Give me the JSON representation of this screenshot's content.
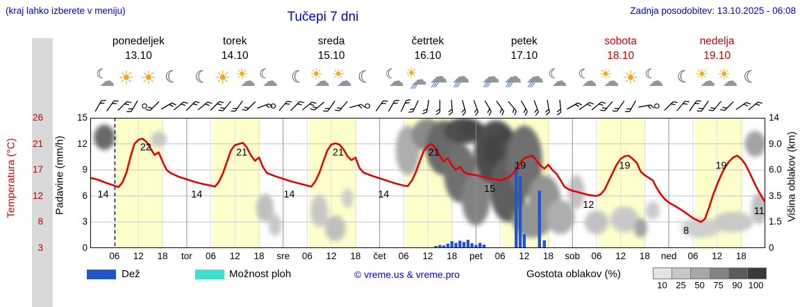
{
  "header": {
    "hint": "(kraj lahko izberete v meniju)",
    "title": "Tučepi 7 dni",
    "updated": "Zadnja posodobitev: 13.10.2025 - 06:08"
  },
  "axes": {
    "temp_label": "Temperatura (°C)",
    "temp_ticks": [
      "26",
      "21",
      "17",
      "12",
      "8",
      "3"
    ],
    "rain_label": "Padavine (mm/h)",
    "rain_ticks": [
      "15",
      "12",
      "9",
      "6",
      "3",
      "0"
    ],
    "cloud_label": "Višina oblakov (km)",
    "cloud_ticks": [
      "14",
      "9.0",
      "6.0",
      "3.5",
      "1.5",
      "0"
    ],
    "hour_labels": [
      "06",
      "12",
      "18"
    ]
  },
  "days": [
    {
      "name": "ponedeljek",
      "date": "13.10",
      "weekend": false,
      "abbr": null,
      "icons": [
        "moon-cloud",
        "sun",
        "sun",
        "moon"
      ]
    },
    {
      "name": "torek",
      "date": "14.10",
      "weekend": false,
      "abbr": "tor",
      "icons": [
        "moon",
        "sun",
        "sun-cloud",
        "moon-cloud"
      ]
    },
    {
      "name": "sreda",
      "date": "15.10",
      "weekend": false,
      "abbr": "sre",
      "icons": [
        "moon",
        "sun-cloud",
        "sun-cloud",
        "moon"
      ]
    },
    {
      "name": "četrtek",
      "date": "16.10",
      "weekend": false,
      "abbr": "čet",
      "icons": [
        "moon-cloud",
        "sun-rain",
        "rain",
        "rain"
      ]
    },
    {
      "name": "petek",
      "date": "17.10",
      "weekend": false,
      "abbr": "pet",
      "icons": [
        "rain",
        "rain",
        "rain",
        "moon-cloud"
      ]
    },
    {
      "name": "sobota",
      "date": "18.10",
      "weekend": true,
      "abbr": "sob",
      "icons": [
        "moon-cloud",
        "sun-cloud",
        "sun",
        "moon-cloud"
      ]
    },
    {
      "name": "nedelja",
      "date": "19.10",
      "weekend": true,
      "abbr": "ned",
      "icons": [
        "moon",
        "sun-cloud",
        "sun-cloud",
        "moon"
      ]
    }
  ],
  "legend": {
    "rain": "Dež",
    "showers": "Možnost ploh",
    "copyright": "© vreme.us & vreme.pro",
    "cloud_density": "Gostota oblakov (%)",
    "density_ticks": [
      "10",
      "25",
      "50",
      "75",
      "90",
      "100"
    ],
    "density_colors": [
      "#e3e3e3",
      "#c7c7c7",
      "#a7a7a7",
      "#838383",
      "#5b5b5b",
      "#3a3a3a"
    ]
  },
  "colors": {
    "blue_text": "#0000cc",
    "red_text": "#cc0000",
    "temp_line": "#e60000",
    "rain_bar": "#2255cc",
    "showers": "#3fe0cf",
    "day_band": "#ffffcc"
  },
  "chart_data": {
    "type": "meteogram",
    "hours_total": 168,
    "now_hour": 6.13,
    "day_band_hours": [
      6.5,
      18.3
    ],
    "temp_axis_anchors": [
      [
        3,
        0
      ],
      [
        8,
        1
      ],
      [
        12,
        2
      ],
      [
        17,
        3
      ],
      [
        21,
        4
      ],
      [
        26,
        5
      ]
    ],
    "cloud_axis_anchors": [
      [
        0,
        0
      ],
      [
        1.5,
        1
      ],
      [
        3.5,
        2
      ],
      [
        6,
        3
      ],
      [
        9,
        4
      ],
      [
        14,
        5
      ]
    ],
    "temperature": {
      "unit": "°C",
      "series": [
        [
          0,
          15.5
        ],
        [
          2,
          15.1
        ],
        [
          4,
          14.5
        ],
        [
          6,
          14
        ],
        [
          7,
          13.7
        ],
        [
          8,
          14.6
        ],
        [
          9,
          16.5
        ],
        [
          10,
          19
        ],
        [
          11,
          21
        ],
        [
          12,
          21.8
        ],
        [
          13,
          22
        ],
        [
          14,
          21.4
        ],
        [
          15,
          20.3
        ],
        [
          16,
          19.3
        ],
        [
          17,
          19.7
        ],
        [
          18,
          18.3
        ],
        [
          19,
          17
        ],
        [
          20,
          16.4
        ],
        [
          22,
          15.7
        ],
        [
          24,
          15.2
        ],
        [
          26,
          14.7
        ],
        [
          28,
          14.3
        ],
        [
          30,
          14
        ],
        [
          31,
          13.8
        ],
        [
          32,
          14.7
        ],
        [
          33,
          16.3
        ],
        [
          34,
          18.2
        ],
        [
          35,
          20
        ],
        [
          36,
          20.8
        ],
        [
          37,
          21
        ],
        [
          38,
          21.2
        ],
        [
          39,
          20.4
        ],
        [
          40,
          19.2
        ],
        [
          41,
          18.4
        ],
        [
          42,
          18.9
        ],
        [
          43,
          17.4
        ],
        [
          44,
          16.4
        ],
        [
          46,
          15.8
        ],
        [
          48,
          15.3
        ],
        [
          50,
          14.8
        ],
        [
          52,
          14.4
        ],
        [
          54,
          14
        ],
        [
          55,
          13.8
        ],
        [
          56,
          14.8
        ],
        [
          57,
          16.4
        ],
        [
          58,
          18.3
        ],
        [
          59,
          20
        ],
        [
          60,
          20.9
        ],
        [
          61,
          21.1
        ],
        [
          62,
          20.9
        ],
        [
          63,
          20.2
        ],
        [
          64,
          19.1
        ],
        [
          65,
          18.5
        ],
        [
          66,
          18.9
        ],
        [
          67,
          17.3
        ],
        [
          68,
          16.5
        ],
        [
          70,
          15.9
        ],
        [
          72,
          15.4
        ],
        [
          74,
          14.9
        ],
        [
          76,
          14.4
        ],
        [
          78,
          14
        ],
        [
          79,
          13.9
        ],
        [
          80,
          14.9
        ],
        [
          81,
          16.5
        ],
        [
          82,
          18.3
        ],
        [
          83,
          19.9
        ],
        [
          84,
          20.7
        ],
        [
          85,
          21
        ],
        [
          86,
          20.3
        ],
        [
          87,
          19.2
        ],
        [
          88,
          18.3
        ],
        [
          89,
          18.8
        ],
        [
          90,
          17.7
        ],
        [
          91,
          17
        ],
        [
          92,
          17.5
        ],
        [
          93,
          16.6
        ],
        [
          94,
          16.2
        ],
        [
          96,
          16
        ],
        [
          98,
          15.6
        ],
        [
          100,
          15.3
        ],
        [
          102,
          15
        ],
        [
          104,
          15.5
        ],
        [
          105,
          16.1
        ],
        [
          106,
          17.1
        ],
        [
          107,
          18.1
        ],
        [
          108,
          18.8
        ],
        [
          109,
          19
        ],
        [
          110,
          19.2
        ],
        [
          111,
          18.5
        ],
        [
          112,
          17.7
        ],
        [
          113,
          17.2
        ],
        [
          114,
          17.8
        ],
        [
          115,
          17
        ],
        [
          116,
          16.3
        ],
        [
          117,
          15.1
        ],
        [
          118,
          13.8
        ],
        [
          119,
          13.3
        ],
        [
          120,
          13
        ],
        [
          122,
          12.6
        ],
        [
          124,
          12.2
        ],
        [
          126,
          12
        ],
        [
          127,
          12.3
        ],
        [
          128,
          13.2
        ],
        [
          129,
          14.8
        ],
        [
          130,
          16.4
        ],
        [
          131,
          17.8
        ],
        [
          132,
          18.7
        ],
        [
          133,
          19.1
        ],
        [
          134,
          19.2
        ],
        [
          135,
          18.7
        ],
        [
          136,
          18.1
        ],
        [
          137,
          16.7
        ],
        [
          138,
          16
        ],
        [
          139,
          15.5
        ],
        [
          140,
          15
        ],
        [
          141,
          13.5
        ],
        [
          142,
          12.3
        ],
        [
          143,
          11.5
        ],
        [
          144,
          11
        ],
        [
          146,
          10.3
        ],
        [
          148,
          9.5
        ],
        [
          150,
          8.6
        ],
        [
          152,
          8
        ],
        [
          153,
          8.5
        ],
        [
          154,
          10.2
        ],
        [
          155,
          12.2
        ],
        [
          156,
          14.2
        ],
        [
          157,
          16
        ],
        [
          158,
          17.4
        ],
        [
          159,
          18.3
        ],
        [
          160,
          18.9
        ],
        [
          161,
          19.2
        ],
        [
          162,
          18.7
        ],
        [
          163,
          17.9
        ],
        [
          164,
          16.6
        ],
        [
          165,
          15
        ],
        [
          166,
          13.4
        ],
        [
          167,
          12
        ],
        [
          168,
          11
        ]
      ]
    },
    "temp_point_labels": [
      {
        "t": 3.2,
        "v": 14
      },
      {
        "t": 13.8,
        "v": 22
      },
      {
        "t": 26.5,
        "v": 14
      },
      {
        "t": 37.7,
        "v": 21
      },
      {
        "t": 49.5,
        "v": 14
      },
      {
        "t": 61.7,
        "v": 21
      },
      {
        "t": 73,
        "v": 14
      },
      {
        "t": 85.5,
        "v": 21
      },
      {
        "t": 99.4,
        "v": 15
      },
      {
        "t": 107,
        "v": 19
      },
      {
        "t": 124,
        "v": 12
      },
      {
        "t": 133,
        "v": 19
      },
      {
        "t": 148.3,
        "v": 8
      },
      {
        "t": 157,
        "v": 19
      },
      {
        "t": 166.5,
        "v": 11
      }
    ],
    "rain": {
      "unit": "mm/h",
      "axis_max": 15,
      "bars": [
        {
          "t": 86,
          "v": 0.25
        },
        {
          "t": 87,
          "v": 0.35
        },
        {
          "t": 88,
          "v": 0.3
        },
        {
          "t": 89,
          "v": 0.5
        },
        {
          "t": 90,
          "v": 0.8
        },
        {
          "t": 91,
          "v": 0.6
        },
        {
          "t": 92,
          "v": 0.85
        },
        {
          "t": 93,
          "v": 0.7
        },
        {
          "t": 94,
          "v": 0.95
        },
        {
          "t": 95,
          "v": 0.55
        },
        {
          "t": 96,
          "v": 0.35
        },
        {
          "t": 97,
          "v": 0.6
        },
        {
          "t": 98,
          "v": 0.4
        },
        {
          "t": 106,
          "v": 9.4
        },
        {
          "t": 107,
          "v": 8.3
        },
        {
          "t": 108,
          "v": 1.6
        },
        {
          "t": 111.8,
          "v": 6.6
        },
        {
          "t": 113,
          "v": 0.9
        }
      ]
    },
    "clouds": {
      "unit": "km center / km radius / density %",
      "blobs": [
        {
          "t": 3.5,
          "km": 10.5,
          "rt": 2.6,
          "rkm": 2.2,
          "d": 80
        },
        {
          "t": 17,
          "km": 10,
          "rt": 2,
          "rkm": 1.4,
          "d": 25
        },
        {
          "t": 43.5,
          "km": 2.6,
          "rt": 2.2,
          "rkm": 1.1,
          "d": 30
        },
        {
          "t": 46,
          "km": 1.4,
          "rt": 1.6,
          "rkm": 0.7,
          "d": 25
        },
        {
          "t": 57,
          "km": 2.4,
          "rt": 2.2,
          "rkm": 1.2,
          "d": 25
        },
        {
          "t": 61,
          "km": 1.2,
          "rt": 2.6,
          "rkm": 0.8,
          "d": 30
        },
        {
          "t": 64,
          "km": 3.4,
          "rt": 1.4,
          "rkm": 0.8,
          "d": 22
        },
        {
          "t": 79,
          "km": 9,
          "rt": 3,
          "rkm": 3.5,
          "d": 40
        },
        {
          "t": 84,
          "km": 11,
          "rt": 4,
          "rkm": 2.8,
          "d": 60
        },
        {
          "t": 88,
          "km": 9.5,
          "rt": 4.5,
          "rkm": 4,
          "d": 80
        },
        {
          "t": 93,
          "km": 11.5,
          "rt": 5,
          "rkm": 2.5,
          "d": 95
        },
        {
          "t": 95,
          "km": 12,
          "rt": 3,
          "rkm": 1.5,
          "d": 100
        },
        {
          "t": 92,
          "km": 6,
          "rt": 4,
          "rkm": 3,
          "d": 75
        },
        {
          "t": 96,
          "km": 3.5,
          "rt": 3.5,
          "rkm": 2.2,
          "d": 65
        },
        {
          "t": 101,
          "km": 9,
          "rt": 5.5,
          "rkm": 4.5,
          "d": 95
        },
        {
          "t": 100,
          "km": 8.5,
          "rt": 2.5,
          "rkm": 2,
          "d": 100
        },
        {
          "t": 103,
          "km": 10.8,
          "rt": 2,
          "rkm": 1.2,
          "d": 100
        },
        {
          "t": 104,
          "km": 4.5,
          "rt": 4.5,
          "rkm": 3,
          "d": 85
        },
        {
          "t": 108,
          "km": 8,
          "rt": 4.5,
          "rkm": 4.5,
          "d": 75
        },
        {
          "t": 110,
          "km": 1.8,
          "rt": 5,
          "rkm": 1.2,
          "d": 55
        },
        {
          "t": 113,
          "km": 3.5,
          "rt": 4,
          "rkm": 2,
          "d": 55
        },
        {
          "t": 117,
          "km": 2,
          "rt": 3.5,
          "rkm": 1.2,
          "d": 40
        },
        {
          "t": 121,
          "km": 4,
          "rt": 2,
          "rkm": 1.5,
          "d": 30
        },
        {
          "t": 126,
          "km": 1.6,
          "rt": 3,
          "rkm": 0.8,
          "d": 28
        },
        {
          "t": 133,
          "km": 1.8,
          "rt": 3.5,
          "rkm": 0.9,
          "d": 24
        },
        {
          "t": 137,
          "km": 1.2,
          "rt": 1.6,
          "rkm": 0.6,
          "d": 45
        },
        {
          "t": 140,
          "km": 2.4,
          "rt": 1.8,
          "rkm": 0.7,
          "d": 22
        },
        {
          "t": 152,
          "km": 1.2,
          "rt": 5,
          "rkm": 0.6,
          "d": 20
        },
        {
          "t": 160,
          "km": 1.6,
          "rt": 5,
          "rkm": 0.7,
          "d": 24
        },
        {
          "t": 165.5,
          "km": 9.5,
          "rt": 2.6,
          "rkm": 2,
          "d": 45
        },
        {
          "t": 166.5,
          "km": 2.6,
          "rt": 2,
          "rkm": 1.2,
          "d": 30
        }
      ]
    },
    "wind": [
      {
        "t": 2,
        "d": 30
      },
      {
        "t": 5,
        "d": 35
      },
      {
        "t": 8,
        "d": 45
      },
      {
        "t": 11,
        "d": 210
      },
      {
        "t": 13.5,
        "calm": true
      },
      {
        "t": 16,
        "d": 225
      },
      {
        "t": 19,
        "d": 60
      },
      {
        "t": 22,
        "d": 50
      },
      {
        "t": 25,
        "d": 45
      },
      {
        "t": 28,
        "d": 50
      },
      {
        "t": 31,
        "d": 45
      },
      {
        "t": 34,
        "d": 220
      },
      {
        "t": 37,
        "d": 215
      },
      {
        "t": 40,
        "d": 225
      },
      {
        "t": 43,
        "d": 70
      },
      {
        "t": 45.5,
        "calm": true
      },
      {
        "t": 48,
        "d": 40
      },
      {
        "t": 51,
        "d": 45
      },
      {
        "t": 54,
        "d": 50
      },
      {
        "t": 57,
        "d": 230
      },
      {
        "t": 60,
        "d": 215
      },
      {
        "t": 63,
        "d": 220
      },
      {
        "t": 66,
        "d": 75
      },
      {
        "t": 69,
        "calm": true
      },
      {
        "t": 72,
        "d": 35
      },
      {
        "t": 75,
        "d": 30
      },
      {
        "t": 78,
        "d": 25
      },
      {
        "t": 81,
        "d": 205
      },
      {
        "t": 84,
        "d": 190
      },
      {
        "t": 87,
        "d": 180
      },
      {
        "t": 90,
        "d": 175
      },
      {
        "t": 93,
        "d": 165
      },
      {
        "t": 96,
        "d": 160
      },
      {
        "t": 99,
        "d": 150
      },
      {
        "t": 102,
        "d": 145
      },
      {
        "t": 105,
        "d": 140
      },
      {
        "t": 108,
        "d": 150
      },
      {
        "t": 111,
        "d": 160
      },
      {
        "t": 114,
        "d": 170
      },
      {
        "t": 117,
        "d": 175
      },
      {
        "t": 120,
        "d": 60
      },
      {
        "t": 123,
        "d": 55
      },
      {
        "t": 126,
        "d": 50
      },
      {
        "t": 129,
        "d": 220
      },
      {
        "t": 132,
        "d": 215
      },
      {
        "t": 135,
        "d": 210
      },
      {
        "t": 138,
        "d": 80
      },
      {
        "t": 141,
        "calm": true
      },
      {
        "t": 144,
        "d": 45
      },
      {
        "t": 147,
        "d": 40
      },
      {
        "t": 150,
        "d": 35
      },
      {
        "t": 153,
        "d": 215
      },
      {
        "t": 156,
        "d": 220
      },
      {
        "t": 159,
        "d": 225
      },
      {
        "t": 162,
        "d": 55
      },
      {
        "t": 165,
        "d": 50
      }
    ]
  }
}
